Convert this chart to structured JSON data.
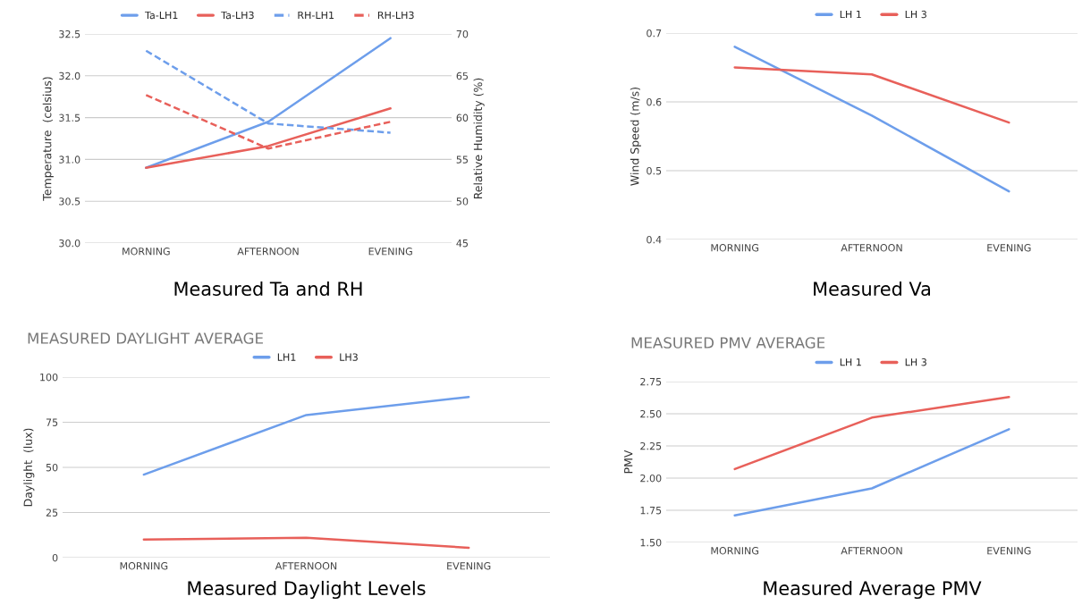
{
  "chart_data": [
    {
      "type": "line",
      "categories": [
        "MORNING",
        "AFTERNOON",
        "EVENING"
      ],
      "ylabel": "Temperature  (celsius)",
      "y2label": "Relative Humidity (%)",
      "series": [
        {
          "name": "Ta-LH1",
          "color": "#6d9eeb",
          "values": [
            30.9,
            31.45,
            32.45
          ]
        },
        {
          "name": "Ta-LH3",
          "color": "#e8605a",
          "values": [
            30.9,
            31.16,
            31.61
          ]
        },
        {
          "name": "RH-LH1",
          "color": "#6d9eeb",
          "values": [
            68,
            59.3,
            58.2
          ],
          "axis": "y2",
          "line_style": "dashed"
        },
        {
          "name": "RH-LH3",
          "color": "#e8605a",
          "values": [
            62.7,
            56.3,
            59.5
          ],
          "axis": "y2",
          "line_style": "dashed"
        }
      ],
      "ylim": [
        30.0,
        32.5
      ],
      "yticks": [
        {
          "value": 30.0,
          "label": "30.0"
        },
        {
          "value": 30.5,
          "label": "30.5"
        },
        {
          "value": 31.0,
          "label": "31.0"
        },
        {
          "value": 31.5,
          "label": "31.5"
        },
        {
          "value": 32.0,
          "label": "32.0"
        },
        {
          "value": 32.5,
          "label": "32.5"
        }
      ],
      "y2lim": [
        45,
        70
      ],
      "y2ticks": [
        45,
        50,
        55,
        60,
        65,
        70
      ],
      "grid": "y",
      "legend": "top",
      "marker": "none",
      "annotations": [
        "Measured Ta and RH"
      ]
    },
    {
      "type": "line",
      "categories": [
        "MORNING",
        "AFTERNOON",
        "EVENING"
      ],
      "ylabel": "Wind Speed (m/s)",
      "series": [
        {
          "name": "LH 1",
          "color": "#6d9eeb",
          "values": [
            0.68,
            0.58,
            0.47
          ]
        },
        {
          "name": "LH 3",
          "color": "#e8605a",
          "values": [
            0.65,
            0.64,
            0.57
          ]
        }
      ],
      "ylim": [
        0.4,
        0.7
      ],
      "yticks": [
        0.4,
        0.5,
        0.6,
        0.7
      ],
      "grid": "y",
      "legend": "top",
      "marker": "none",
      "annotations": [
        "Measured Va"
      ]
    },
    {
      "type": "line",
      "title": "MEASURED DAYLIGHT AVERAGE",
      "categories": [
        "MORNING",
        "AFTERNOON",
        "EVENING"
      ],
      "ylabel": "Daylight  (lux)",
      "series": [
        {
          "name": "LH1",
          "color": "#6d9eeb",
          "values": [
            46,
            79,
            89
          ]
        },
        {
          "name": "LH3",
          "color": "#e8605a",
          "values": [
            10,
            11,
            5.5
          ]
        }
      ],
      "ylim": [
        0,
        100
      ],
      "yticks": [
        0,
        25,
        50,
        75,
        100
      ],
      "grid": "y",
      "legend": "top",
      "marker": "none",
      "annotations": [
        "Measured Daylight Levels"
      ]
    },
    {
      "type": "line",
      "title": "MEASURED PMV AVERAGE",
      "categories": [
        "MORNING",
        "AFTERNOON",
        "EVENING"
      ],
      "ylabel": "PMV",
      "series": [
        {
          "name": "LH 1",
          "color": "#6d9eeb",
          "values": [
            1.71,
            1.92,
            2.38
          ]
        },
        {
          "name": "LH 3",
          "color": "#e8605a",
          "values": [
            2.07,
            2.47,
            2.63
          ]
        }
      ],
      "ylim": [
        1.5,
        2.75
      ],
      "yticks": [
        {
          "value": 1.5,
          "label": "1.50"
        },
        {
          "value": 1.75,
          "label": "1.75"
        },
        {
          "value": 2.0,
          "label": "2.00"
        },
        {
          "value": 2.25,
          "label": "2.25"
        },
        {
          "value": 2.5,
          "label": "2.50"
        },
        {
          "value": 2.75,
          "label": "2.75"
        }
      ],
      "grid": "y",
      "legend": "top",
      "marker": "none",
      "annotations": [
        "Measured Average PMV"
      ]
    }
  ]
}
